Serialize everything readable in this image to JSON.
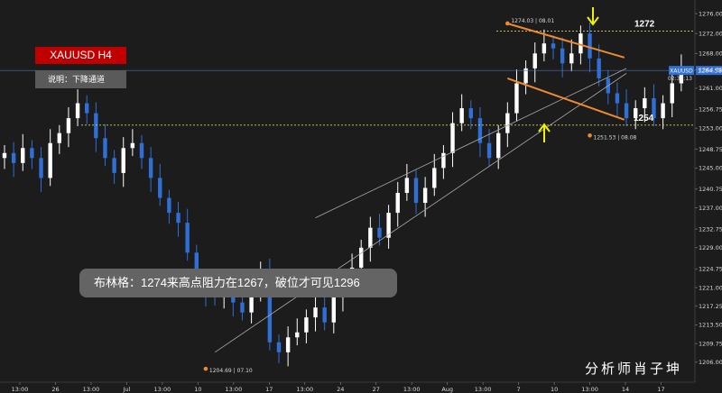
{
  "header": {
    "symbol_timeframe": "XAUUSD  H4",
    "note": "说明：下降通道"
  },
  "annotation": "布林格：1274来高点阻力在1267，破位才可见1296",
  "signature": "分析师肖子坤",
  "chart_data": {
    "type": "candlestick",
    "symbol": "XAUUSD",
    "timeframe": "H4",
    "ylim": [
      1202,
      1278
    ],
    "y_ticks": [
      1206.0,
      1209.75,
      1213.5,
      1217.25,
      1221.0,
      1224.75,
      1229.0,
      1232.75,
      1237.0,
      1240.75,
      1245.0,
      1248.75,
      1253.0,
      1256.75,
      1261.0,
      1264.75,
      1268.0,
      1272.0,
      1276.0
    ],
    "x_ticks": [
      "13:00",
      "26",
      "13:00",
      "Jul",
      "13:00",
      "10",
      "13:00",
      "17",
      "13:00",
      "24",
      "27",
      "13:00",
      "Aug",
      "13:00",
      "7",
      "10",
      "13:00",
      "14",
      "17"
    ],
    "current_price": "1264.58",
    "current_countdown": "02:30:13",
    "levels": [
      {
        "label": "1272",
        "value": 1272.5
      },
      {
        "label": "1254",
        "value": 1253.6
      }
    ],
    "marked_points": [
      {
        "label": "1274.03 | 08.01",
        "price": 1274.03,
        "date": "08.01"
      },
      {
        "label": "1251.53 | 08.08",
        "price": 1251.53,
        "date": "08.08"
      },
      {
        "label": "1204.69 | 07.10",
        "price": 1204.69,
        "date": "07.10"
      }
    ],
    "trendlines": [
      {
        "from": [
          34,
          1235.0
        ],
        "to": [
          68,
          1265.0
        ]
      },
      {
        "from": [
          23,
          1208.0
        ],
        "to": [
          68,
          1264.0
        ]
      }
    ],
    "channel": {
      "upper": {
        "from": [
          55,
          1274.0
        ],
        "to": [
          66,
          1267.0
        ]
      },
      "lower": {
        "from": [
          55,
          1263.0
        ],
        "to": [
          66,
          1254.5
        ]
      }
    },
    "closes": [
      1248,
      1246,
      1249,
      1247,
      1243,
      1250,
      1252,
      1255,
      1258,
      1256,
      1251,
      1247,
      1244,
      1249,
      1250,
      1247,
      1243,
      1239,
      1236,
      1234,
      1228,
      1222,
      1220,
      1219,
      1222,
      1218,
      1216,
      1221,
      1224,
      1210,
      1208,
      1211,
      1212,
      1215,
      1217,
      1214,
      1219,
      1222,
      1225,
      1229,
      1233,
      1231,
      1236,
      1240,
      1243,
      1238,
      1241,
      1245,
      1248,
      1254,
      1257,
      1255,
      1250,
      1247,
      1252,
      1256,
      1262,
      1265,
      1268,
      1270,
      1269,
      1266,
      1268,
      1272,
      1267,
      1263,
      1260,
      1258,
      1255,
      1257,
      1259,
      1255,
      1258,
      1262,
      1265
    ],
    "level_color": "#d4d46a",
    "channel_color": "#f08a30",
    "arrow_color": "#f0f000",
    "up_color": "#ffffff",
    "down_color": "#2f6fd6"
  }
}
